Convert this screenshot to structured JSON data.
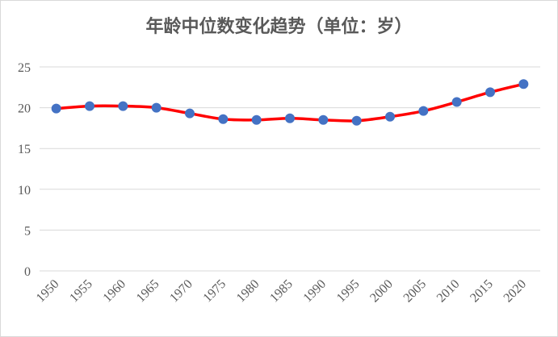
{
  "chart_data": {
    "type": "line",
    "title": "年龄中位数变化趋势（单位：岁）",
    "xlabel": "",
    "ylabel": "",
    "categories": [
      "1950",
      "1955",
      "1960",
      "1965",
      "1970",
      "1975",
      "1980",
      "1985",
      "1990",
      "1995",
      "2000",
      "2005",
      "2010",
      "2015",
      "2020"
    ],
    "series": [
      {
        "values": [
          19.9,
          20.2,
          20.2,
          20.0,
          19.3,
          18.6,
          18.5,
          18.7,
          18.5,
          18.4,
          18.9,
          19.6,
          20.7,
          21.9,
          22.9
        ]
      }
    ],
    "ylim": [
      0,
      25
    ],
    "yticks": [
      "0",
      "5",
      "10",
      "15",
      "20",
      "25"
    ],
    "grid": true,
    "legend": "none",
    "colors": {
      "line": "#ff0000",
      "marker": "#4472c4",
      "grid": "#d9d9d9",
      "text": "#595959"
    }
  }
}
